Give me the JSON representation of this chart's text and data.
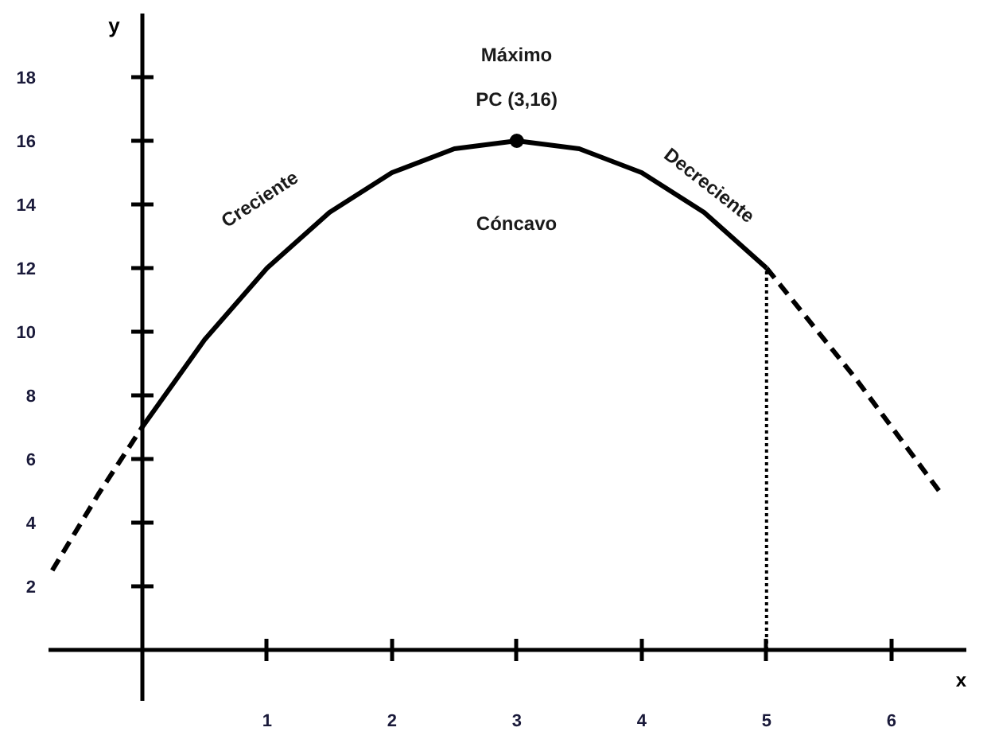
{
  "chart_data": {
    "type": "line",
    "xlabel": "x",
    "ylabel": "y",
    "xlim": [
      -0.75,
      6.6
    ],
    "ylim": [
      -1.6,
      20
    ],
    "xticks": [
      1,
      2,
      3,
      4,
      5,
      6
    ],
    "yticks": [
      2,
      4,
      6,
      8,
      10,
      12,
      14,
      16,
      18
    ],
    "grid": false,
    "series": [
      {
        "color": "#000000",
        "line_style": "solid",
        "x": [
          0,
          0.5,
          1,
          1.5,
          2,
          2.5,
          3,
          3.5,
          4,
          4.5,
          5
        ],
        "values": [
          7,
          9.75,
          12,
          13.75,
          15,
          15.75,
          16,
          15.75,
          15,
          13.75,
          12
        ]
      },
      {
        "color": "#000000",
        "line_style": "dashed",
        "x": [
          -0.72,
          -0.35,
          0
        ],
        "values": [
          2.5,
          4.9,
          7
        ]
      },
      {
        "color": "#000000",
        "line_style": "dashed",
        "x": [
          5,
          5.7,
          6.4
        ],
        "values": [
          12,
          8.6,
          4.9
        ]
      },
      {
        "color": "#000000",
        "line_style": "dotted",
        "x": [
          5,
          5
        ],
        "values": [
          0,
          12
        ]
      },
      {
        "type": "scatter",
        "color": "#000000",
        "marker": "circle",
        "x": [
          3
        ],
        "values": [
          16
        ]
      }
    ],
    "annotations": [
      "Máximo",
      "PC (3,16)",
      "Creciente",
      "Cóncavo",
      "Decreciente"
    ]
  }
}
